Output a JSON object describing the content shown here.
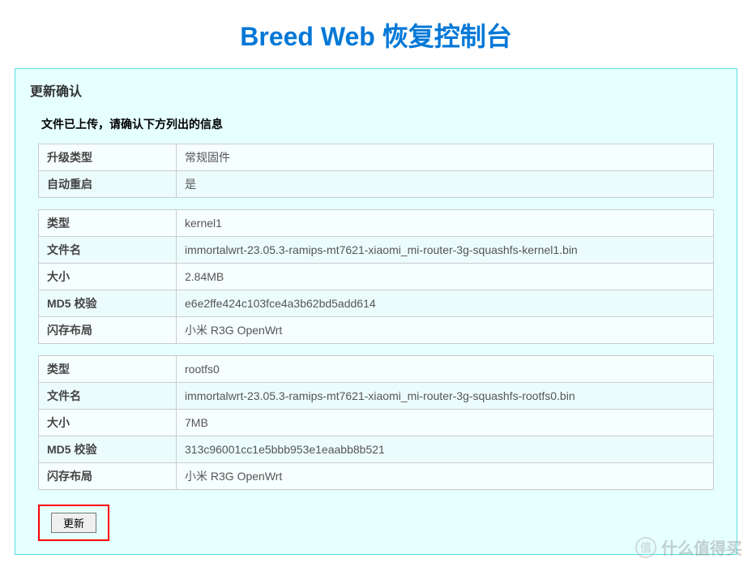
{
  "title": "Breed Web 恢复控制台",
  "panel": {
    "header": "更新确认",
    "instruction": "文件已上传，请确认下方列出的信息"
  },
  "labels": {
    "upgrade_type": "升级类型",
    "auto_reboot": "自动重启",
    "type": "类型",
    "filename": "文件名",
    "size": "大小",
    "md5": "MD5 校验",
    "flash_layout": "闪存布局"
  },
  "summary": {
    "upgrade_type": "常规固件",
    "auto_reboot": "是"
  },
  "file1": {
    "type": "kernel1",
    "filename": "immortalwrt-23.05.3-ramips-mt7621-xiaomi_mi-router-3g-squashfs-kernel1.bin",
    "size": "2.84MB",
    "md5": "e6e2ffe424c103fce4a3b62bd5add614",
    "flash_layout": "小米 R3G OpenWrt"
  },
  "file2": {
    "type": "rootfs0",
    "filename": "immortalwrt-23.05.3-ramips-mt7621-xiaomi_mi-router-3g-squashfs-rootfs0.bin",
    "size": "7MB",
    "md5": "313c96001cc1e5bbb953e1eaabb8b521",
    "flash_layout": "小米 R3G OpenWrt"
  },
  "button": {
    "update": "更新"
  },
  "watermark": {
    "icon": "值",
    "text": "什么值得买"
  },
  "colors": {
    "title": "#0078d7",
    "panel_border": "#5fdede",
    "panel_bg": "#e6ffff",
    "cell_border": "#cccccc",
    "highlight": "#ff0000"
  }
}
